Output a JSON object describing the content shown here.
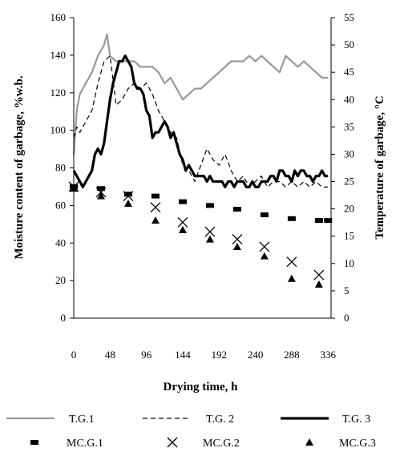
{
  "chart_data": {
    "type": "line",
    "xlabel": "Drying time, h",
    "ylabel_left": "Moisture content of garbage,  %w.b.",
    "ylabel_right": "Temperature of garbage, °C",
    "xlim": [
      0,
      340
    ],
    "ylim_left": [
      0,
      160
    ],
    "ylim_right": [
      0,
      55
    ],
    "xticks": [
      0,
      48,
      96,
      144,
      192,
      240,
      288,
      336
    ],
    "yticks_left": [
      0,
      20,
      40,
      60,
      80,
      100,
      120,
      140,
      160
    ],
    "yticks_right": [
      0,
      5,
      10,
      15,
      20,
      25,
      30,
      35,
      40,
      45,
      50,
      55
    ],
    "grid": false,
    "legend_position": "bottom",
    "temperature_series": [
      {
        "name": "T.G.1",
        "axis": "right",
        "style": "solid-gray",
        "color": "#999999",
        "x": [
          0,
          4,
          8,
          16,
          24,
          32,
          40,
          44,
          48,
          56,
          64,
          72,
          80,
          88,
          96,
          104,
          112,
          120,
          128,
          136,
          144,
          152,
          160,
          168,
          176,
          184,
          192,
          200,
          208,
          216,
          224,
          232,
          240,
          248,
          256,
          264,
          272,
          280,
          288,
          296,
          304,
          312,
          320,
          328,
          336
        ],
        "y": [
          30,
          38,
          41,
          43,
          45,
          48,
          50,
          52,
          48,
          47,
          47,
          47,
          47,
          46,
          46,
          46,
          45,
          43,
          44,
          42,
          40,
          41,
          42,
          42,
          43,
          44,
          45,
          46,
          47,
          47,
          47,
          48,
          47,
          48,
          47,
          46,
          45,
          48,
          47,
          46,
          47,
          46,
          45,
          44,
          44
        ]
      },
      {
        "name": "T.G. 2",
        "axis": "right",
        "style": "dashed",
        "color": "#000000",
        "x": [
          0,
          4,
          8,
          16,
          24,
          32,
          40,
          48,
          56,
          64,
          72,
          80,
          88,
          96,
          104,
          112,
          120,
          128,
          136,
          144,
          152,
          160,
          168,
          176,
          184,
          192,
          200,
          208,
          216,
          224,
          232,
          240,
          248,
          256,
          264,
          272,
          280,
          288,
          296,
          304,
          312,
          320,
          328,
          336
        ],
        "y": [
          33,
          35,
          34,
          36,
          38,
          43,
          47,
          48,
          39,
          40,
          42,
          43,
          42,
          43,
          41,
          38,
          36,
          34,
          33,
          28,
          27,
          25,
          28,
          31,
          29,
          28,
          30,
          27,
          25,
          26,
          24,
          25,
          26,
          24,
          25,
          25,
          24,
          25,
          24,
          25,
          24,
          25,
          24,
          24
        ]
      },
      {
        "name": "T.G. 3",
        "axis": "right",
        "style": "solid-bold",
        "color": "#000000",
        "x": [
          0,
          4,
          8,
          12,
          16,
          20,
          24,
          28,
          32,
          36,
          40,
          44,
          48,
          52,
          56,
          60,
          64,
          68,
          72,
          76,
          80,
          84,
          88,
          92,
          96,
          100,
          104,
          108,
          112,
          116,
          120,
          124,
          128,
          132,
          136,
          140,
          144,
          148,
          152,
          156,
          160,
          164,
          168,
          172,
          176,
          180,
          184,
          188,
          192,
          196,
          200,
          204,
          208,
          212,
          216,
          220,
          224,
          228,
          232,
          236,
          240,
          244,
          248,
          252,
          256,
          260,
          264,
          268,
          272,
          276,
          280,
          284,
          288,
          292,
          296,
          300,
          304,
          308,
          312,
          316,
          320,
          324,
          328,
          332,
          336
        ],
        "y": [
          27,
          26,
          25,
          24,
          25,
          26,
          27,
          30,
          31,
          30,
          32,
          36,
          40,
          43,
          45,
          47,
          47,
          48,
          47,
          46,
          43,
          42,
          42,
          41,
          38,
          37,
          33,
          34,
          34,
          35,
          36,
          35,
          33,
          34,
          32,
          30,
          29,
          27,
          28,
          27,
          26,
          26,
          26,
          26,
          25,
          26,
          25,
          25,
          25,
          25,
          24,
          25,
          25,
          24,
          25,
          25,
          25,
          24,
          24,
          25,
          24,
          24,
          25,
          25,
          25,
          26,
          26,
          25,
          27,
          27,
          26,
          26,
          25,
          27,
          26,
          27,
          27,
          26,
          26,
          25,
          26,
          26,
          27,
          26,
          26
        ]
      }
    ],
    "moisture_series": [
      {
        "name": "MC.G.1",
        "axis": "left",
        "marker": "dash",
        "x": [
          0,
          36,
          72,
          108,
          144,
          180,
          216,
          252,
          288,
          324,
          336
        ],
        "y": [
          70,
          69,
          66,
          65,
          62,
          60,
          58,
          55,
          53,
          52,
          52
        ]
      },
      {
        "name": "MC.G.2",
        "axis": "left",
        "marker": "x",
        "x": [
          0,
          36,
          72,
          108,
          144,
          180,
          216,
          252,
          288,
          324
        ],
        "y": [
          70,
          67,
          65,
          59,
          51,
          46,
          42,
          38,
          30,
          23
        ]
      },
      {
        "name": "MC.G.3",
        "axis": "left",
        "marker": "triangle",
        "x": [
          0,
          36,
          72,
          108,
          144,
          180,
          216,
          252,
          288,
          324
        ],
        "y": [
          69,
          65,
          61,
          52,
          47,
          42,
          38,
          33,
          21,
          18
        ]
      }
    ]
  }
}
